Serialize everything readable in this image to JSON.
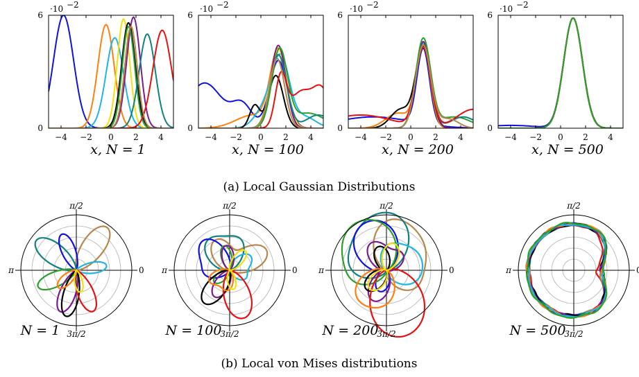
{
  "colors": [
    "#1010e0",
    "#ff7f0e",
    "#1fb4e6",
    "#f0e010",
    "#000000",
    "#7b1a8f",
    "#2aa02a",
    "#108080",
    "#e51010",
    "#b8864b"
  ],
  "captions": {
    "a": "(a) Local Gaussian Distributions",
    "b": "(b) Local von Mises distributions"
  },
  "gaussian": {
    "scale_label": "·10",
    "scale_exp": "−2",
    "ytick_labels": [
      "0",
      "6"
    ],
    "xtick_labels": [
      "−4",
      "−2",
      "0",
      "2",
      "4"
    ]
  },
  "polar": {
    "tick_labels": {
      "top": "π/2",
      "left": "π",
      "right": "0",
      "bottom": "3π/2"
    }
  },
  "chart_data": [
    {
      "type": "line",
      "xlabel": "x, N = 1",
      "xlim": [
        -5,
        5
      ],
      "ylim": [
        0,
        0.06
      ],
      "yticks": [
        0,
        0.06
      ],
      "series": [
        {
          "color": "#1010e0",
          "peaks": [
            [
              -3.8,
              0.06,
              0.8
            ]
          ]
        },
        {
          "color": "#ff7f0e",
          "peaks": [
            [
              -0.4,
              0.055,
              0.65
            ]
          ]
        },
        {
          "color": "#1fb4e6",
          "peaks": [
            [
              0.3,
              0.048,
              0.7
            ]
          ]
        },
        {
          "color": "#f0e010",
          "peaks": [
            [
              1.0,
              0.058,
              0.5
            ]
          ]
        },
        {
          "color": "#000000",
          "peaks": [
            [
              1.4,
              0.056,
              0.55
            ]
          ]
        },
        {
          "color": "#7b1a8f",
          "peaks": [
            [
              1.8,
              0.059,
              0.55
            ]
          ]
        },
        {
          "color": "#2aa02a",
          "peaks": [
            [
              1.4,
              0.054,
              0.5
            ]
          ]
        },
        {
          "color": "#108080",
          "peaks": [
            [
              2.9,
              0.05,
              0.65
            ]
          ]
        },
        {
          "color": "#e51010",
          "peaks": [
            [
              4.1,
              0.052,
              0.75
            ]
          ]
        },
        {
          "color": "#b8864b",
          "peaks": [
            [
              1.6,
              0.054,
              0.5
            ]
          ]
        }
      ]
    },
    {
      "type": "line",
      "xlabel": "x, N = 100",
      "xlim": [
        -5,
        5
      ],
      "ylim": [
        0,
        0.06
      ],
      "yticks": [
        0,
        0.06
      ],
      "series": [
        {
          "color": "#1010e0",
          "peaks": [
            [
              -4.5,
              0.024,
              1.4
            ],
            [
              -1.5,
              0.012,
              0.8
            ],
            [
              1.4,
              0.036,
              0.7
            ]
          ]
        },
        {
          "color": "#ff7f0e",
          "peaks": [
            [
              -0.6,
              0.007,
              1.4
            ],
            [
              1.4,
              0.04,
              0.65
            ]
          ]
        },
        {
          "color": "#1fb4e6",
          "peaks": [
            [
              0.3,
              0.01,
              0.8
            ],
            [
              1.6,
              0.036,
              0.7
            ],
            [
              3.5,
              0.006,
              0.9
            ]
          ]
        },
        {
          "color": "#f0e010",
          "peaks": [
            [
              1.4,
              0.042,
              0.65
            ]
          ]
        },
        {
          "color": "#000000",
          "peaks": [
            [
              -0.5,
              0.012,
              0.4
            ],
            [
              1.2,
              0.028,
              0.6
            ]
          ]
        },
        {
          "color": "#7b1a8f",
          "peaks": [
            [
              1.4,
              0.044,
              0.6
            ]
          ]
        },
        {
          "color": "#2aa02a",
          "peaks": [
            [
              1.5,
              0.041,
              0.62
            ],
            [
              3.8,
              0.008,
              1.3
            ]
          ]
        },
        {
          "color": "#108080",
          "peaks": [
            [
              1.4,
              0.039,
              0.65
            ],
            [
              4.6,
              0.007,
              1.0
            ]
          ]
        },
        {
          "color": "#e51010",
          "peaks": [
            [
              1.6,
              0.026,
              0.45
            ],
            [
              3.2,
              0.019,
              0.9
            ],
            [
              4.9,
              0.019,
              0.7
            ]
          ]
        },
        {
          "color": "#b8864b",
          "peaks": [
            [
              1.3,
              0.037,
              0.6
            ]
          ]
        }
      ]
    },
    {
      "type": "line",
      "xlabel": "x, N = 200",
      "xlim": [
        -5,
        5
      ],
      "ylim": [
        0,
        0.06
      ],
      "yticks": [
        0,
        0.06
      ],
      "series": [
        {
          "color": "#1010e0",
          "peaks": [
            [
              1.0,
              0.04,
              0.5
            ],
            [
              -3,
              0.006,
              3
            ]
          ]
        },
        {
          "color": "#ff7f0e",
          "peaks": [
            [
              1.0,
              0.044,
              0.55
            ],
            [
              -1.0,
              0.008,
              1.0
            ]
          ]
        },
        {
          "color": "#1fb4e6",
          "peaks": [
            [
              1.0,
              0.045,
              0.6
            ]
          ]
        },
        {
          "color": "#f0e010",
          "peaks": [
            [
              1.0,
              0.044,
              0.6
            ]
          ]
        },
        {
          "color": "#000000",
          "peaks": [
            [
              1.0,
              0.043,
              0.6
            ],
            [
              -0.8,
              0.01,
              0.8
            ]
          ]
        },
        {
          "color": "#7b1a8f",
          "peaks": [
            [
              1.0,
              0.046,
              0.6
            ]
          ]
        },
        {
          "color": "#2aa02a",
          "peaks": [
            [
              1.0,
              0.047,
              0.6
            ],
            [
              3.5,
              0.006,
              1.3
            ]
          ]
        },
        {
          "color": "#108080",
          "peaks": [
            [
              1.0,
              0.044,
              0.6
            ],
            [
              4.2,
              0.006,
              1.0
            ]
          ]
        },
        {
          "color": "#e51010",
          "peaks": [
            [
              1.0,
              0.042,
              0.6
            ],
            [
              -4,
              0.007,
              2.5
            ],
            [
              5,
              0.01,
              1.3
            ]
          ]
        },
        {
          "color": "#b8864b",
          "peaks": [
            [
              1.0,
              0.044,
              0.6
            ],
            [
              3.0,
              0.005,
              0.8
            ]
          ]
        }
      ]
    },
    {
      "type": "line",
      "xlabel": "x, N = 500",
      "xlim": [
        -5,
        5
      ],
      "ylim": [
        0,
        0.06
      ],
      "yticks": [
        0,
        0.06
      ],
      "series": [
        {
          "color": "#1010e0",
          "peaks": [
            [
              1.0,
              0.0585,
              0.75
            ],
            [
              -4,
              0.0015,
              2
            ]
          ]
        },
        {
          "color": "#ff7f0e",
          "peaks": [
            [
              1.0,
              0.0585,
              0.75
            ]
          ]
        },
        {
          "color": "#1fb4e6",
          "peaks": [
            [
              1.0,
              0.0585,
              0.75
            ]
          ]
        },
        {
          "color": "#f0e010",
          "peaks": [
            [
              1.0,
              0.0585,
              0.75
            ]
          ]
        },
        {
          "color": "#000000",
          "peaks": [
            [
              1.0,
              0.0585,
              0.76
            ]
          ]
        },
        {
          "color": "#7b1a8f",
          "peaks": [
            [
              1.0,
              0.0585,
              0.75
            ]
          ]
        },
        {
          "color": "#108080",
          "peaks": [
            [
              1.0,
              0.0585,
              0.75
            ]
          ]
        },
        {
          "color": "#e51010",
          "peaks": [
            [
              1.0,
              0.0585,
              0.75
            ]
          ]
        },
        {
          "color": "#b8864b",
          "peaks": [
            [
              1.0,
              0.0585,
              0.75
            ]
          ]
        },
        {
          "color": "#2aa02a",
          "peaks": [
            [
              1.0,
              0.0585,
              0.75
            ]
          ]
        }
      ]
    },
    {
      "type": "polar",
      "label": "N = 1",
      "rmax": 1,
      "series": [
        {
          "color": "#b8864b",
          "lobes": [
            [
              0.95,
              0.95,
              0.35
            ]
          ]
        },
        {
          "color": "#108080",
          "lobes": [
            [
              2.5,
              0.9,
              0.35
            ]
          ]
        },
        {
          "color": "#1010e0",
          "lobes": [
            [
              1.95,
              0.7,
              0.3
            ]
          ]
        },
        {
          "color": "#1fb4e6",
          "lobes": [
            [
              0.15,
              0.55,
              0.3
            ]
          ]
        },
        {
          "color": "#2aa02a",
          "lobes": [
            [
              3.55,
              0.75,
              0.3
            ]
          ]
        },
        {
          "color": "#7b1a8f",
          "lobes": [
            [
              4.35,
              0.8,
              0.3
            ]
          ]
        },
        {
          "color": "#000000",
          "lobes": [
            [
              4.5,
              0.85,
              0.28
            ]
          ]
        },
        {
          "color": "#e51010",
          "lobes": [
            [
              5.1,
              0.8,
              0.3
            ]
          ]
        },
        {
          "color": "#ff7f0e",
          "lobes": [
            [
              3.9,
              0.45,
              0.35
            ]
          ]
        },
        {
          "color": "#f0e010",
          "lobes": [
            [
              4.9,
              0.4,
              0.3
            ]
          ]
        }
      ]
    },
    {
      "type": "polar",
      "label": "N = 100",
      "rmax": 1,
      "series": [
        {
          "color": "#b8864b",
          "lobes": [
            [
              0.5,
              0.75,
              0.45
            ],
            [
              2.0,
              0.6,
              0.5
            ]
          ]
        },
        {
          "color": "#108080",
          "lobes": [
            [
              2.2,
              0.65,
              0.5
            ],
            [
              1.2,
              0.5,
              0.4
            ]
          ]
        },
        {
          "color": "#1010e0",
          "lobes": [
            [
              2.3,
              0.7,
              0.45
            ],
            [
              3.3,
              0.4,
              0.4
            ]
          ]
        },
        {
          "color": "#1fb4e6",
          "lobes": [
            [
              0.6,
              0.45,
              0.45
            ],
            [
              5.8,
              0.3,
              0.4
            ]
          ]
        },
        {
          "color": "#2aa02a",
          "lobes": [
            [
              1.8,
              0.45,
              0.35
            ],
            [
              3.8,
              0.35,
              0.4
            ]
          ]
        },
        {
          "color": "#7b1a8f",
          "lobes": [
            [
              4.2,
              0.55,
              0.4
            ],
            [
              1.7,
              0.45,
              0.4
            ]
          ]
        },
        {
          "color": "#000000",
          "lobes": [
            [
              4.05,
              0.75,
              0.4
            ]
          ]
        },
        {
          "color": "#e51010",
          "lobes": [
            [
              5.0,
              0.9,
              0.45
            ]
          ]
        },
        {
          "color": "#ff7f0e",
          "lobes": [
            [
              3.6,
              0.4,
              0.4
            ],
            [
              4.6,
              0.35,
              0.4
            ]
          ]
        },
        {
          "color": "#f0e010",
          "lobes": [
            [
              0.9,
              0.45,
              0.35
            ],
            [
              4.9,
              0.35,
              0.35
            ]
          ]
        }
      ]
    },
    {
      "type": "polar",
      "label": "N = 200",
      "rmax": 1,
      "series": [
        {
          "color": "#b8864b",
          "lobes": [
            [
              0.6,
              0.7,
              0.6
            ],
            [
              1.6,
              0.7,
              0.5
            ],
            [
              5.7,
              0.5,
              0.5
            ]
          ]
        },
        {
          "color": "#108080",
          "lobes": [
            [
              2.0,
              0.75,
              0.6
            ],
            [
              1.2,
              0.6,
              0.5
            ],
            [
              3.1,
              0.5,
              0.5
            ]
          ]
        },
        {
          "color": "#1010e0",
          "lobes": [
            [
              2.3,
              0.7,
              0.55
            ],
            [
              1.5,
              0.55,
              0.5
            ],
            [
              4.4,
              0.4,
              0.5
            ]
          ]
        },
        {
          "color": "#1fb4e6",
          "lobes": [
            [
              0.5,
              0.5,
              0.5
            ],
            [
              5.9,
              0.45,
              0.5
            ],
            [
              1.5,
              0.4,
              0.5
            ]
          ]
        },
        {
          "color": "#2aa02a",
          "lobes": [
            [
              2.4,
              0.75,
              0.5
            ],
            [
              3.4,
              0.55,
              0.5
            ],
            [
              1.6,
              0.6,
              0.5
            ]
          ]
        },
        {
          "color": "#7b1a8f",
          "lobes": [
            [
              4.3,
              0.6,
              0.5
            ],
            [
              2.1,
              0.55,
              0.5
            ],
            [
              0.8,
              0.4,
              0.5
            ]
          ]
        },
        {
          "color": "#000000",
          "lobes": [
            [
              3.9,
              0.5,
              0.5
            ],
            [
              1.9,
              0.45,
              0.5
            ]
          ]
        },
        {
          "color": "#e51010",
          "lobes": [
            [
              5.3,
              0.9,
              0.6
            ],
            [
              4.6,
              0.6,
              0.5
            ]
          ]
        },
        {
          "color": "#ff7f0e",
          "lobes": [
            [
              3.8,
              0.6,
              0.5
            ],
            [
              4.7,
              0.5,
              0.5
            ]
          ]
        },
        {
          "color": "#f0e010",
          "lobes": [
            [
              1.3,
              0.5,
              0.5
            ],
            [
              4.0,
              0.45,
              0.5
            ]
          ]
        }
      ]
    },
    {
      "type": "polar",
      "label": "N = 500",
      "rmax": 1,
      "series": [
        {
          "color": "#e51010",
          "base": 0.78,
          "lobes": [
            [
              0.0,
              -0.38,
              0.45
            ],
            [
              4.9,
              0.05,
              0.8
            ],
            [
              2.2,
              0.05,
              0.8
            ]
          ]
        },
        {
          "color": "#b8864b",
          "base": 0.81,
          "lobes": [
            [
              0.0,
              -0.35,
              0.45
            ],
            [
              1.2,
              0.05,
              0.6
            ]
          ]
        },
        {
          "color": "#108080",
          "base": 0.82,
          "lobes": [
            [
              0.0,
              -0.34,
              0.45
            ]
          ]
        },
        {
          "color": "#1010e0",
          "base": 0.83,
          "lobes": [
            [
              0.0,
              -0.33,
              0.45
            ]
          ]
        },
        {
          "color": "#000000",
          "base": 0.82,
          "lobes": [
            [
              0.0,
              -0.33,
              0.45
            ]
          ]
        },
        {
          "color": "#7b1a8f",
          "base": 0.83,
          "lobes": [
            [
              0.0,
              -0.34,
              0.45
            ]
          ]
        },
        {
          "color": "#ff7f0e",
          "base": 0.84,
          "lobes": [
            [
              0.0,
              -0.33,
              0.45
            ]
          ]
        },
        {
          "color": "#1fb4e6",
          "base": 0.83,
          "lobes": [
            [
              0.0,
              -0.32,
              0.45
            ]
          ]
        },
        {
          "color": "#2aa02a",
          "base": 0.85,
          "lobes": [
            [
              0.0,
              -0.33,
              0.45
            ]
          ]
        }
      ]
    }
  ]
}
